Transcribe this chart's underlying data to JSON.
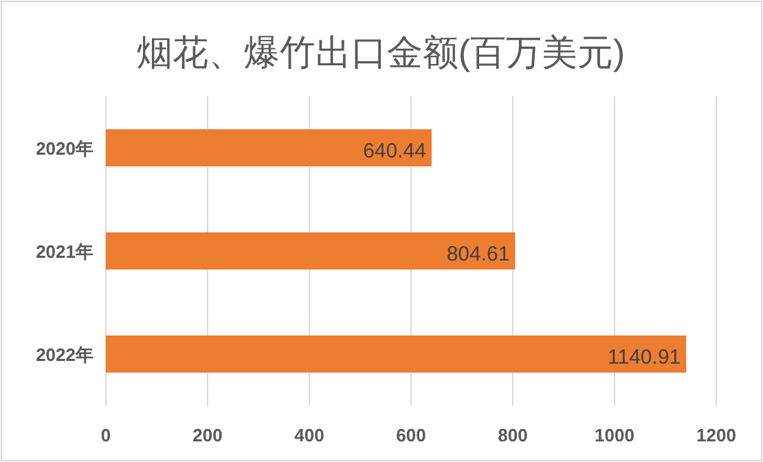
{
  "chart_data": {
    "type": "bar",
    "orientation": "horizontal",
    "title": "烟花、爆竹出口金额(百万美元)",
    "categories": [
      "2020年",
      "2021年",
      "2022年"
    ],
    "values": [
      640.44,
      804.61,
      1140.91
    ],
    "color": "#ed7d31",
    "xlim": [
      0,
      1200
    ],
    "xticks": [
      0,
      200,
      400,
      600,
      800,
      1000,
      1200
    ],
    "grid": "x",
    "data_labels": true
  }
}
